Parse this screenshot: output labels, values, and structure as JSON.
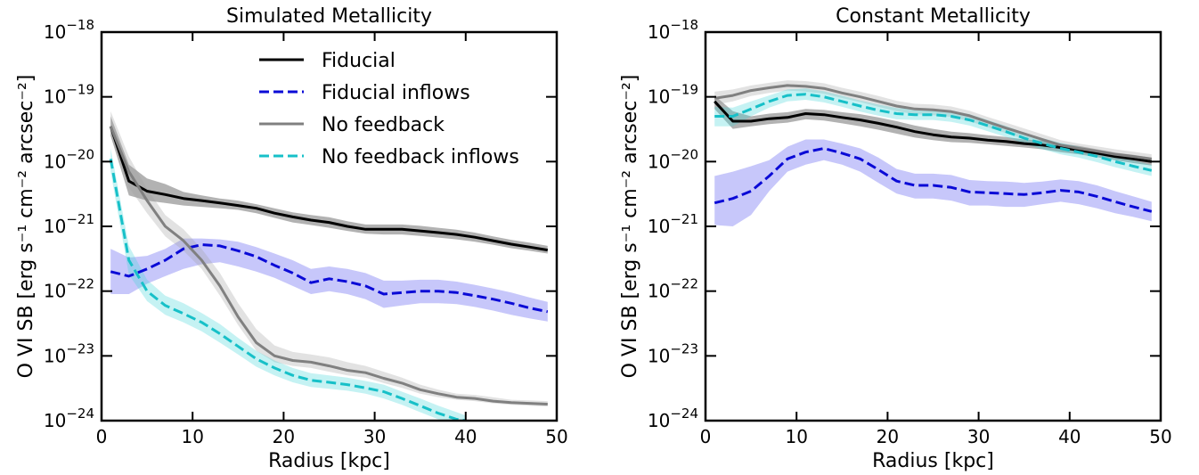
{
  "chart_data": [
    {
      "type": "line",
      "title": "Simulated Metallicity",
      "xlabel": "Radius [kpc]",
      "ylabel": "O VI SB [erg s⁻¹ cm⁻² arcsec⁻²]",
      "xlim": [
        0,
        50
      ],
      "ylim": [
        1e-24,
        1e-18
      ],
      "yscale": "log",
      "grid": false,
      "legend": "top-right",
      "xticks": [
        "0",
        "10",
        "20",
        "30",
        "40",
        "50"
      ],
      "yticks": [
        {
          "base": "10",
          "exp": "−18"
        },
        {
          "base": "10",
          "exp": "−19"
        },
        {
          "base": "10",
          "exp": "−20"
        },
        {
          "base": "10",
          "exp": "−21"
        },
        {
          "base": "10",
          "exp": "−22"
        },
        {
          "base": "10",
          "exp": "−23"
        },
        {
          "base": "10",
          "exp": "−24"
        }
      ],
      "series": [
        {
          "name": "Fiducial",
          "color": "#000000",
          "band_color": "#000000",
          "dash": "solid",
          "x": [
            1,
            3,
            5,
            7,
            9,
            11,
            13,
            15,
            17,
            19,
            21,
            23,
            25,
            27,
            29,
            31,
            33,
            35,
            37,
            39,
            41,
            43,
            45,
            47,
            49
          ],
          "y": [
            3.5e-20,
            5e-21,
            3.5e-21,
            3.1e-21,
            2.7e-21,
            2.5e-21,
            2.3e-21,
            2.1e-21,
            1.9e-21,
            1.6e-21,
            1.4e-21,
            1.25e-21,
            1.15e-21,
            1e-21,
            9e-22,
            9e-22,
            9e-22,
            8.5e-22,
            8e-22,
            7.5e-22,
            6.8e-22,
            6e-22,
            5.3e-22,
            4.8e-22,
            4.3e-22
          ],
          "lo": [
            2.5e-20,
            3e-21,
            2.5e-21,
            2.3e-21,
            2.1e-21,
            2e-21,
            1.9e-21,
            1.8e-21,
            1.6e-21,
            1.35e-21,
            1.15e-21,
            1.05e-21,
            9.5e-22,
            8.5e-22,
            7.7e-22,
            7.5e-22,
            7.5e-22,
            7.1e-22,
            6.7e-22,
            6.3e-22,
            5.8e-22,
            5.2e-22,
            4.6e-22,
            4.2e-22,
            3.8e-22
          ],
          "hi": [
            5e-20,
            9e-21,
            5.5e-21,
            4.5e-21,
            3.4e-21,
            3e-21,
            2.7e-21,
            2.5e-21,
            2.2e-21,
            1.9e-21,
            1.65e-21,
            1.5e-21,
            1.38e-21,
            1.2e-21,
            1.07e-21,
            1.07e-21,
            1.07e-21,
            1.02e-21,
            9.5e-22,
            8.9e-22,
            8e-22,
            7e-22,
            6.2e-22,
            5.6e-22,
            5e-22
          ]
        },
        {
          "name": "Fiducial inflows",
          "color": "#0a0ad6",
          "band_color": "#4444ee",
          "dash": "dashed",
          "x": [
            1,
            3,
            5,
            7,
            9,
            11,
            13,
            15,
            17,
            19,
            21,
            23,
            25,
            27,
            29,
            31,
            33,
            35,
            37,
            39,
            41,
            43,
            45,
            47,
            49
          ],
          "y": [
            2e-22,
            1.7e-22,
            2.2e-22,
            3e-22,
            4.5e-22,
            5.2e-22,
            5e-22,
            4.2e-22,
            3.4e-22,
            2.5e-22,
            1.9e-22,
            1.35e-22,
            1.55e-22,
            1.4e-22,
            1.2e-22,
            9e-23,
            9.5e-23,
            1e-22,
            1e-22,
            9.5e-23,
            8.5e-23,
            7.5e-23,
            6.5e-23,
            5.5e-23,
            4.8e-23
          ],
          "lo": [
            9e-23,
            9e-23,
            1.3e-22,
            1.7e-22,
            2.2e-22,
            2.6e-22,
            2.8e-22,
            2.4e-22,
            2e-22,
            1.6e-22,
            1.2e-22,
            9e-23,
            1e-22,
            9e-23,
            7.5e-23,
            5.5e-23,
            6e-23,
            6.5e-23,
            6.5e-23,
            6.3e-23,
            5.7e-23,
            5e-23,
            4.3e-23,
            3.8e-23,
            3.4e-23
          ],
          "hi": [
            4.5e-22,
            3.3e-22,
            3.5e-22,
            4.5e-22,
            6.5e-22,
            6.5e-22,
            6.3e-22,
            5.8e-22,
            4.8e-22,
            3.8e-22,
            3e-22,
            2.2e-22,
            2.4e-22,
            2.2e-22,
            1.9e-22,
            1.45e-22,
            1.45e-22,
            1.5e-22,
            1.5e-22,
            1.4e-22,
            1.25e-22,
            1.1e-22,
            9.5e-23,
            8e-23,
            6.8e-23
          ]
        },
        {
          "name": "No feedback",
          "color": "#808080",
          "band_color": "#a0a0a0",
          "dash": "solid",
          "x": [
            1,
            3,
            5,
            7,
            9,
            11,
            13,
            15,
            17,
            19,
            21,
            23,
            25,
            27,
            29,
            31,
            33,
            35,
            37,
            39,
            41,
            43,
            45,
            47,
            49
          ],
          "y": [
            3.5e-20,
            7e-21,
            2.5e-21,
            1e-21,
            6e-22,
            3e-22,
            1.2e-22,
            4e-23,
            1.6e-23,
            1e-23,
            8.5e-24,
            8e-24,
            7e-24,
            6e-24,
            5.5e-24,
            4.5e-24,
            3.8e-24,
            3e-24,
            2.6e-24,
            2.3e-24,
            2.2e-24,
            2e-24,
            1.9e-24,
            1.85e-24,
            1.8e-24
          ],
          "lo": [
            2.5e-20,
            4e-21,
            1.6e-21,
            7e-22,
            4.2e-22,
            2.2e-22,
            8.5e-23,
            3e-23,
            1.2e-23,
            8e-24,
            7e-24,
            6.5e-24,
            5.7e-24,
            5e-24,
            4.6e-24,
            3.8e-24,
            3.2e-24,
            2.6e-24,
            2.3e-24,
            2.1e-24,
            2e-24,
            1.85e-24,
            1.75e-24,
            1.7e-24,
            1.65e-24
          ],
          "hi": [
            6e-20,
            1.2e-20,
            3.8e-21,
            1.5e-21,
            9e-22,
            4.5e-22,
            1.9e-22,
            6.5e-23,
            2.6e-23,
            1.45e-23,
            1.15e-23,
            1.05e-23,
            9.5e-24,
            8e-24,
            7e-24,
            5.7e-24,
            4.6e-24,
            3.6e-24,
            3e-24,
            2.6e-24,
            2.5e-24,
            2.3e-24,
            2.1e-24,
            2.05e-24,
            2e-24
          ]
        },
        {
          "name": "No feedback inflows",
          "color": "#17c0c8",
          "band_color": "#3fd3d8",
          "dash": "dashed",
          "x": [
            1,
            3,
            5,
            7,
            9,
            11,
            13,
            15,
            17,
            19,
            21,
            23,
            25,
            27,
            29,
            31,
            33,
            35,
            37,
            39,
            40
          ],
          "y": [
            1.1e-20,
            3e-22,
            1e-22,
            6e-23,
            4.5e-23,
            3.3e-23,
            2.2e-23,
            1.4e-23,
            9e-24,
            6.5e-24,
            5e-24,
            4.2e-24,
            3.9e-24,
            3.6e-24,
            3.2e-24,
            2.8e-24,
            2.2e-24,
            1.7e-24,
            1.3e-24,
            1.05e-24,
            1e-24
          ],
          "lo": [
            7e-21,
            1.8e-22,
            7e-23,
            4.3e-23,
            3.3e-23,
            2.4e-23,
            1.6e-23,
            1.05e-23,
            6.8e-24,
            5e-24,
            3.9e-24,
            3.3e-24,
            3.1e-24,
            2.9e-24,
            2.6e-24,
            2.2e-24,
            1.75e-24,
            1.35e-24,
            1.05e-24,
            1e-24,
            1e-24
          ],
          "hi": [
            1.6e-20,
            5e-22,
            1.5e-22,
            8.5e-23,
            6.5e-23,
            4.6e-23,
            3.1e-23,
            1.9e-23,
            1.2e-23,
            8.5e-24,
            6.5e-24,
            5.4e-24,
            5e-24,
            4.6e-24,
            4.1e-24,
            3.6e-24,
            2.8e-24,
            2.2e-24,
            1.7e-24,
            1.35e-24,
            1.2e-24
          ]
        }
      ]
    },
    {
      "type": "line",
      "title": "Constant Metallicity",
      "xlabel": "Radius [kpc]",
      "ylabel": "O VI SB [erg s⁻¹ cm⁻² arcsec⁻²]",
      "xlim": [
        0,
        50
      ],
      "ylim": [
        1e-24,
        1e-18
      ],
      "yscale": "log",
      "grid": false,
      "xticks": [
        "0",
        "10",
        "20",
        "30",
        "40",
        "50"
      ],
      "yticks": [
        {
          "base": "10",
          "exp": "−18"
        },
        {
          "base": "10",
          "exp": "−19"
        },
        {
          "base": "10",
          "exp": "−20"
        },
        {
          "base": "10",
          "exp": "−21"
        },
        {
          "base": "10",
          "exp": "−22"
        },
        {
          "base": "10",
          "exp": "−23"
        },
        {
          "base": "10",
          "exp": "−24"
        }
      ],
      "series": [
        {
          "name": "Fiducial",
          "color": "#000000",
          "band_color": "#000000",
          "dash": "solid",
          "x": [
            1,
            3,
            5,
            7,
            9,
            11,
            13,
            15,
            17,
            19,
            21,
            23,
            25,
            27,
            29,
            31,
            33,
            35,
            37,
            39,
            41,
            43,
            45,
            47,
            49
          ],
          "y": [
            8.5e-20,
            4.2e-20,
            4.2e-20,
            4.6e-20,
            4.8e-20,
            5.5e-20,
            5.3e-20,
            4.8e-20,
            4.4e-20,
            3.9e-20,
            3.4e-20,
            2.9e-20,
            2.6e-20,
            2.4e-20,
            2.3e-20,
            2.15e-20,
            2.05e-20,
            1.9e-20,
            1.8e-20,
            1.65e-20,
            1.5e-20,
            1.35e-20,
            1.2e-20,
            1.1e-20,
            1e-20
          ],
          "lo": [
            6.5e-20,
            3.2e-20,
            3.5e-20,
            3.8e-20,
            4e-20,
            4.5e-20,
            4.3e-20,
            3.9e-20,
            3.5e-20,
            3.1e-20,
            2.7e-20,
            2.35e-20,
            2.15e-20,
            2e-20,
            1.95e-20,
            1.85e-20,
            1.75e-20,
            1.65e-20,
            1.55e-20,
            1.4e-20,
            1.3e-20,
            1.17e-20,
            1.05e-20,
            9.5e-21,
            8.7e-21
          ],
          "hi": [
            1.05e-19,
            6e-20,
            5e-20,
            5.5e-20,
            5.8e-20,
            6.5e-20,
            6.3e-20,
            5.8e-20,
            5.4e-20,
            4.8e-20,
            4.2e-20,
            3.6e-20,
            3.2e-20,
            2.9e-20,
            2.75e-20,
            2.55e-20,
            2.4e-20,
            2.2e-20,
            2.1e-20,
            1.9e-20,
            1.75e-20,
            1.55e-20,
            1.38e-20,
            1.27e-20,
            1.15e-20
          ]
        },
        {
          "name": "Fiducial inflows",
          "color": "#0a0ad6",
          "band_color": "#4444ee",
          "dash": "dashed",
          "x": [
            1,
            3,
            5,
            7,
            9,
            11,
            13,
            15,
            17,
            19,
            21,
            23,
            25,
            27,
            29,
            31,
            33,
            35,
            37,
            39,
            41,
            43,
            45,
            47,
            49
          ],
          "y": [
            2.3e-21,
            2.7e-21,
            3.5e-21,
            6e-21,
            1.1e-20,
            1.4e-20,
            1.6e-20,
            1.35e-20,
            1.1e-20,
            7.5e-21,
            5e-21,
            4.3e-21,
            4.3e-21,
            4e-21,
            3.4e-21,
            3.3e-21,
            3.2e-21,
            3.1e-21,
            3.3e-21,
            3.6e-21,
            3.4e-21,
            2.9e-21,
            2.4e-21,
            2e-21,
            1.7e-21
          ],
          "lo": [
            1.05e-21,
            1e-21,
            1.5e-21,
            3.5e-21,
            7e-21,
            9e-21,
            1.05e-20,
            9e-21,
            7e-21,
            4.7e-21,
            3.2e-21,
            2.7e-21,
            2.7e-21,
            2.5e-21,
            2.1e-21,
            2.1e-21,
            2e-21,
            2e-21,
            2.2e-21,
            2.4e-21,
            2.2e-21,
            1.9e-21,
            1.6e-21,
            1.4e-21,
            1.2e-21
          ],
          "hi": [
            6e-21,
            7e-21,
            8.5e-21,
            1.05e-20,
            1.7e-20,
            2.2e-20,
            2.2e-20,
            1.9e-20,
            1.6e-20,
            1.15e-20,
            7.7e-21,
            6.5e-21,
            6.5e-21,
            6.2e-21,
            5.2e-21,
            5e-21,
            4.9e-21,
            4.7e-21,
            4.9e-21,
            5.3e-21,
            5e-21,
            4.3e-21,
            3.5e-21,
            2.9e-21,
            2.4e-21
          ]
        },
        {
          "name": "No feedback",
          "color": "#808080",
          "band_color": "#a0a0a0",
          "dash": "solid",
          "x": [
            1,
            3,
            5,
            7,
            9,
            11,
            13,
            15,
            17,
            19,
            21,
            23,
            25,
            27,
            29,
            31,
            33,
            35,
            37,
            39,
            41,
            43,
            45,
            47,
            49
          ],
          "y": [
            9.5e-20,
            1.05e-19,
            1.25e-19,
            1.38e-19,
            1.5e-19,
            1.45e-19,
            1.35e-19,
            1.15e-19,
            1e-19,
            8.5e-20,
            7.2e-20,
            6.5e-20,
            6.3e-20,
            5.9e-20,
            5.1e-20,
            4.1e-20,
            3.3e-20,
            2.7e-20,
            2.2e-20,
            1.8e-20,
            1.6e-20,
            1.45e-20,
            1.3e-20,
            1.2e-20,
            1.1e-20
          ],
          "lo": [
            7.5e-20,
            8.5e-20,
            1.03e-19,
            1.15e-19,
            1.25e-19,
            1.2e-19,
            1.12e-19,
            9.6e-20,
            8.3e-20,
            7e-20,
            6e-20,
            5.4e-20,
            5.2e-20,
            4.9e-20,
            4.2e-20,
            3.4e-20,
            2.75e-20,
            2.25e-20,
            1.85e-20,
            1.5e-20,
            1.35e-20,
            1.22e-20,
            1.1e-20,
            1e-20,
            9.3e-21
          ],
          "hi": [
            1.2e-19,
            1.3e-19,
            1.5e-19,
            1.65e-19,
            1.8e-19,
            1.75e-19,
            1.62e-19,
            1.38e-19,
            1.2e-19,
            1.03e-19,
            8.7e-20,
            7.8e-20,
            7.6e-20,
            7.1e-20,
            6.1e-20,
            4.9e-20,
            4e-20,
            3.25e-20,
            2.65e-20,
            2.15e-20,
            1.9e-20,
            1.72e-20,
            1.55e-20,
            1.42e-20,
            1.3e-20
          ]
        },
        {
          "name": "No feedback inflows",
          "color": "#17c0c8",
          "band_color": "#3fd3d8",
          "dash": "dashed",
          "x": [
            1,
            3,
            5,
            7,
            9,
            11,
            13,
            15,
            17,
            19,
            21,
            23,
            25,
            27,
            29,
            31,
            33,
            35,
            37,
            39,
            41,
            43,
            45,
            47,
            49
          ],
          "y": [
            5e-20,
            5e-20,
            6.5e-20,
            8.5e-20,
            1.05e-19,
            1.1e-19,
            1e-19,
            8.5e-20,
            7.2e-20,
            6.2e-20,
            5.5e-20,
            5.3e-20,
            5.3e-20,
            5e-20,
            4.4e-20,
            3.6e-20,
            2.9e-20,
            2.3e-20,
            1.9e-20,
            1.6e-20,
            1.4e-20,
            1.2e-20,
            1e-20,
            8.5e-21,
            7.3e-21
          ],
          "lo": [
            3.5e-20,
            3.5e-20,
            5e-20,
            6.8e-20,
            8.5e-20,
            9e-20,
            8.2e-20,
            7e-20,
            5.9e-20,
            5.1e-20,
            4.5e-20,
            4.4e-20,
            4.4e-20,
            4.1e-20,
            3.6e-20,
            2.95e-20,
            2.4e-20,
            1.9e-20,
            1.55e-20,
            1.3e-20,
            1.15e-20,
            9.8e-21,
            8.2e-21,
            7e-21,
            6e-21
          ],
          "hi": [
            7e-20,
            6.8e-20,
            8.5e-20,
            1.05e-19,
            1.3e-19,
            1.35e-19,
            1.22e-19,
            1.04e-19,
            8.8e-20,
            7.6e-20,
            6.7e-20,
            6.5e-20,
            6.5e-20,
            6.1e-20,
            5.4e-20,
            4.4e-20,
            3.55e-20,
            2.8e-20,
            2.3e-20,
            1.95e-20,
            1.7e-20,
            1.45e-20,
            1.22e-20,
            1.04e-20,
            8.9e-21
          ]
        }
      ]
    }
  ]
}
